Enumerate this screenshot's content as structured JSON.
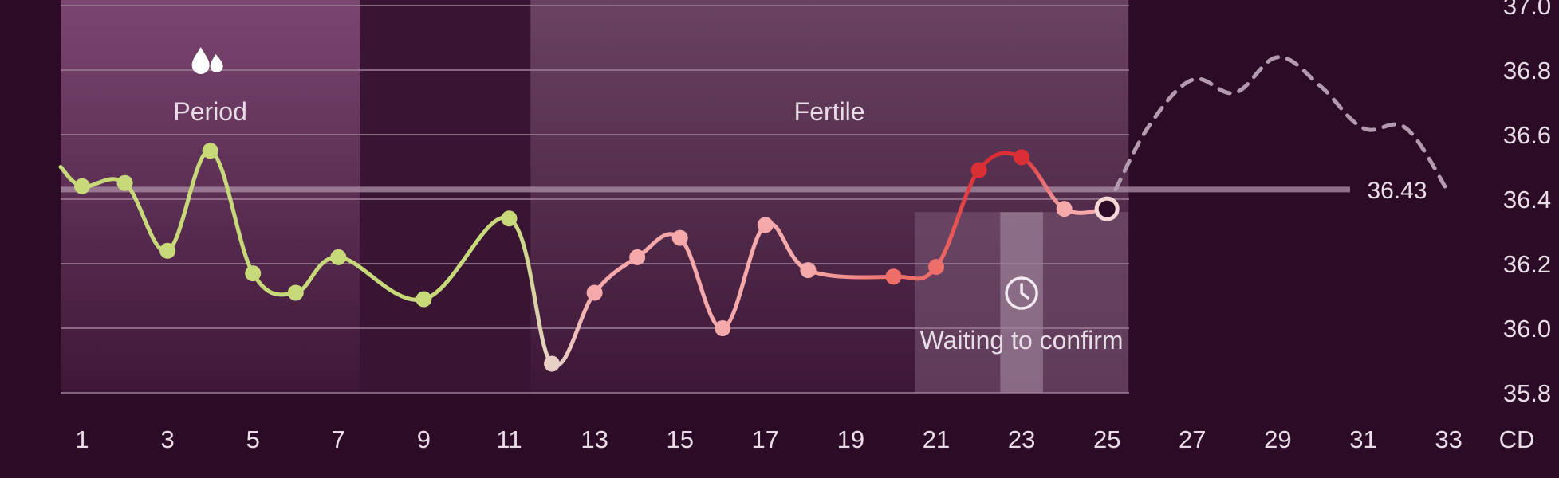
{
  "colors": {
    "background": "#2c0b26",
    "plot_background": "#3a1433",
    "period_phase": "#6a3a62",
    "fertile_phase": "#5e3a58",
    "waiting_band": "#7c5a76",
    "waiting_band_center": "#a58ba0",
    "grid": "#9e7f98",
    "threshold_line": "#a78aa1",
    "text": "#e8dde6",
    "green_point": "#c8d97a",
    "beige_point": "#e8d0c6",
    "pink_point": "#f5a9aa",
    "salmon_point": "#ee6e6a",
    "red_point": "#dc2f35",
    "prediction": "#b39aaf"
  },
  "icons": {
    "period": "drops-icon",
    "waiting": "clock-icon"
  },
  "chart_data": {
    "type": "line",
    "title": "",
    "xlabel": "CD",
    "ylabel": "",
    "xlim": [
      0.5,
      33.5
    ],
    "ylim": [
      35.8,
      37.0
    ],
    "grid": true,
    "x_ticks": [
      1,
      3,
      5,
      7,
      9,
      11,
      13,
      15,
      17,
      19,
      21,
      23,
      25,
      27,
      29,
      31,
      33
    ],
    "y_ticks": [
      "35.8",
      "36.0",
      "36.2",
      "36.4",
      "36.6",
      "36.8",
      "37.0"
    ],
    "phases": [
      {
        "label": "Period",
        "start": 0.5,
        "end": 7.5,
        "icon": "drops-icon"
      },
      {
        "label": "Fertile",
        "start": 11.5,
        "end": 25.5
      }
    ],
    "waiting_band": {
      "label": "Waiting to confirm",
      "start": 20.5,
      "end": 25.5,
      "highlight_start": 22.5,
      "highlight_end": 23.5,
      "icon": "clock-icon"
    },
    "threshold": {
      "value": 36.43,
      "label": "36.43"
    },
    "leading_value": 36.5,
    "points": [
      {
        "cd": 1,
        "temp": 36.44,
        "color": "green"
      },
      {
        "cd": 2,
        "temp": 36.45,
        "color": "green"
      },
      {
        "cd": 3,
        "temp": 36.24,
        "color": "green"
      },
      {
        "cd": 4,
        "temp": 36.55,
        "color": "green"
      },
      {
        "cd": 5,
        "temp": 36.17,
        "color": "green"
      },
      {
        "cd": 6,
        "temp": 36.11,
        "color": "green"
      },
      {
        "cd": 7,
        "temp": 36.22,
        "color": "green"
      },
      {
        "cd": 9,
        "temp": 36.09,
        "color": "green"
      },
      {
        "cd": 11,
        "temp": 36.34,
        "color": "green"
      },
      {
        "cd": 12,
        "temp": 35.89,
        "color": "beige"
      },
      {
        "cd": 13,
        "temp": 36.11,
        "color": "pink"
      },
      {
        "cd": 14,
        "temp": 36.22,
        "color": "pink"
      },
      {
        "cd": 15,
        "temp": 36.28,
        "color": "pink"
      },
      {
        "cd": 16,
        "temp": 36.0,
        "color": "pink"
      },
      {
        "cd": 17,
        "temp": 36.32,
        "color": "pink"
      },
      {
        "cd": 18,
        "temp": 36.18,
        "color": "pink"
      },
      {
        "cd": 20,
        "temp": 36.16,
        "color": "salmon"
      },
      {
        "cd": 21,
        "temp": 36.19,
        "color": "salmon"
      },
      {
        "cd": 22,
        "temp": 36.49,
        "color": "red"
      },
      {
        "cd": 23,
        "temp": 36.53,
        "color": "red"
      },
      {
        "cd": 24,
        "temp": 36.37,
        "color": "pink"
      },
      {
        "cd": 25,
        "temp": 36.37,
        "color": "current"
      }
    ],
    "prediction": [
      {
        "cd": 25.2,
        "temp": 36.43
      },
      {
        "cd": 26,
        "temp": 36.63
      },
      {
        "cd": 27,
        "temp": 36.77
      },
      {
        "cd": 28,
        "temp": 36.73
      },
      {
        "cd": 29,
        "temp": 36.84
      },
      {
        "cd": 30,
        "temp": 36.75
      },
      {
        "cd": 31,
        "temp": 36.62
      },
      {
        "cd": 32,
        "temp": 36.62
      },
      {
        "cd": 33,
        "temp": 36.42
      }
    ]
  }
}
